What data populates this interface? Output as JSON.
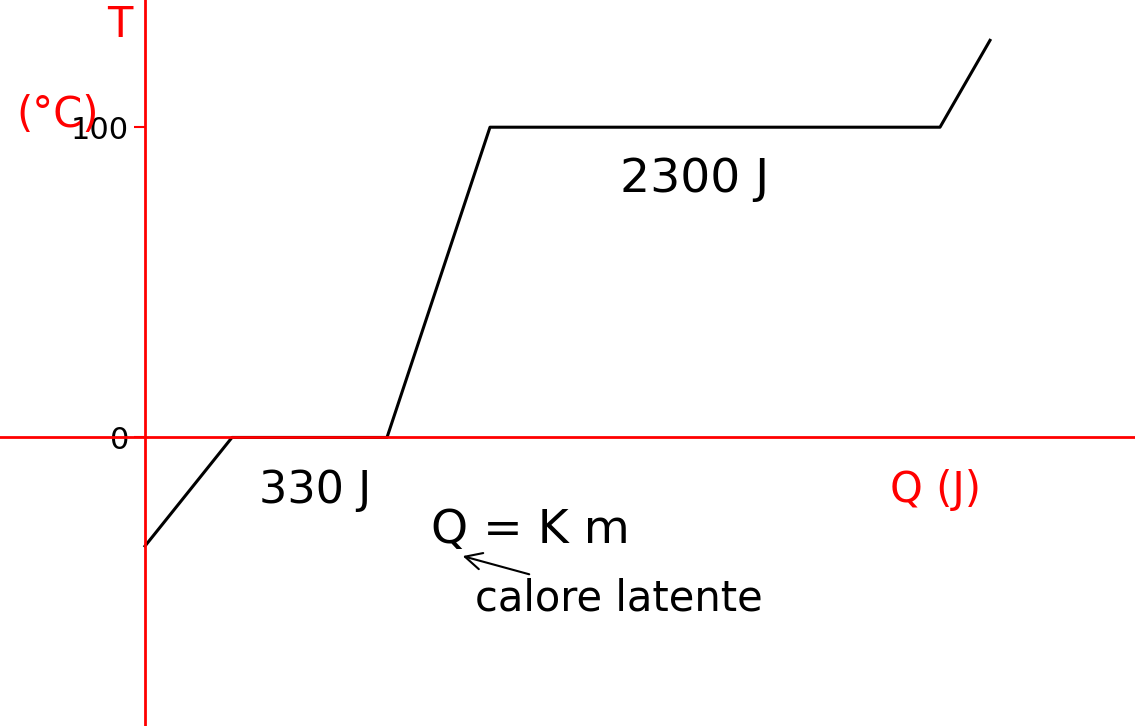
{
  "chart_data": {
    "type": "line",
    "x_label": "Q (J)",
    "y_label": "T",
    "y_unit": "(°C)",
    "x": [
      0,
      0.87,
      2.42,
      3.45,
      7.95,
      8.45
    ],
    "values": [
      -35,
      0,
      0,
      100,
      100,
      128
    ],
    "color": "#000000",
    "xlim": [
      -1.45,
      9.9
    ],
    "ylim": [
      -93,
      141
    ],
    "yticks": [
      0,
      100
    ],
    "tick_labels": "y",
    "annotations": [
      "330 J",
      "2300 J",
      "Q = K m",
      "calore latente"
    ]
  }
}
